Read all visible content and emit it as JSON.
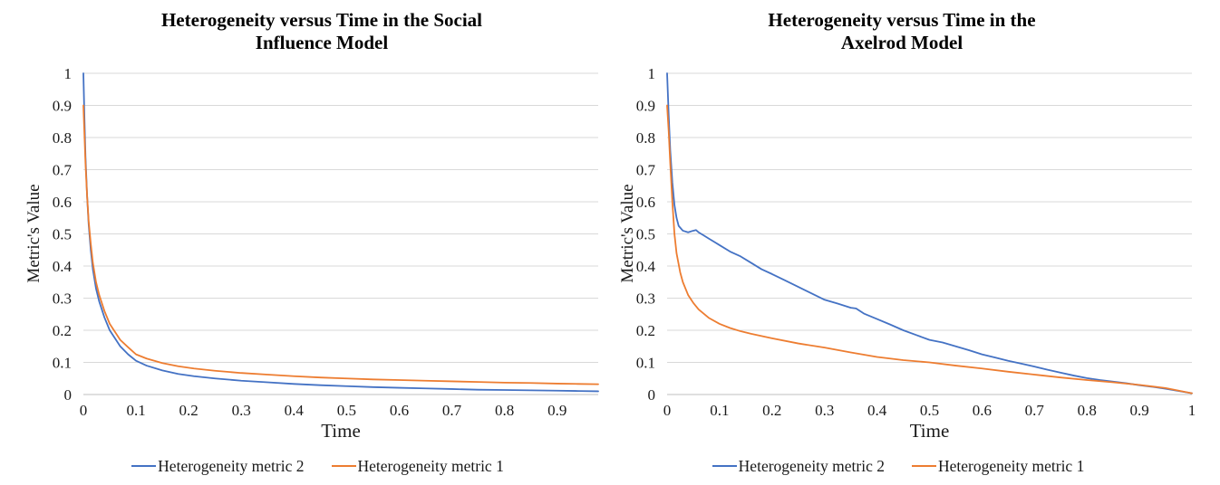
{
  "figure": {
    "background": "#ffffff",
    "text_color": "#000000",
    "grid_color": "#d9d9d9",
    "axis_line_color": "#bfbfbf"
  },
  "chart_data": [
    {
      "type": "line",
      "title": "Heterogeneity versus Time in the Social Influence Model",
      "title_lines": [
        "Heterogeneity versus Time in the Social",
        "Influence Model"
      ],
      "xlabel": "Time",
      "ylabel": "Metric's Value",
      "xlim": [
        0,
        0.978
      ],
      "ylim": [
        0,
        1
      ],
      "x_tick_labels": [
        "0",
        "0.1",
        "0.2",
        "0.3",
        "0.4",
        "0.5",
        "0.6",
        "0.7",
        "0.8",
        "0.9"
      ],
      "y_tick_labels": [
        "0",
        "0.1",
        "0.2",
        "0.3",
        "0.4",
        "0.5",
        "0.6",
        "0.7",
        "0.8",
        "0.9",
        "1"
      ],
      "grid": "horizontal",
      "legend_position": "bottom",
      "series": [
        {
          "name": "Heterogeneity metric 2",
          "color": "#4472C4",
          "x": [
            0,
            0.002,
            0.004,
            0.007,
            0.01,
            0.014,
            0.018,
            0.024,
            0.03,
            0.04,
            0.05,
            0.06,
            0.07,
            0.085,
            0.1,
            0.12,
            0.15,
            0.18,
            0.21,
            0.25,
            0.3,
            0.35,
            0.4,
            0.45,
            0.5,
            0.55,
            0.6,
            0.65,
            0.7,
            0.75,
            0.8,
            0.85,
            0.9,
            0.94,
            0.978
          ],
          "y": [
            1.0,
            0.86,
            0.74,
            0.62,
            0.53,
            0.45,
            0.39,
            0.33,
            0.29,
            0.24,
            0.2,
            0.175,
            0.15,
            0.125,
            0.105,
            0.09,
            0.075,
            0.064,
            0.057,
            0.05,
            0.043,
            0.038,
            0.033,
            0.029,
            0.026,
            0.023,
            0.021,
            0.019,
            0.017,
            0.015,
            0.014,
            0.013,
            0.012,
            0.011,
            0.01
          ]
        },
        {
          "name": "Heterogeneity metric 1",
          "color": "#ED7D31",
          "x": [
            0,
            0.002,
            0.004,
            0.007,
            0.01,
            0.014,
            0.018,
            0.024,
            0.03,
            0.04,
            0.05,
            0.06,
            0.07,
            0.085,
            0.1,
            0.12,
            0.15,
            0.18,
            0.21,
            0.25,
            0.3,
            0.35,
            0.4,
            0.45,
            0.5,
            0.55,
            0.6,
            0.65,
            0.7,
            0.75,
            0.8,
            0.85,
            0.9,
            0.94,
            0.978
          ],
          "y": [
            0.9,
            0.81,
            0.72,
            0.62,
            0.54,
            0.47,
            0.41,
            0.35,
            0.31,
            0.26,
            0.22,
            0.195,
            0.17,
            0.147,
            0.125,
            0.112,
            0.098,
            0.088,
            0.081,
            0.074,
            0.067,
            0.062,
            0.057,
            0.053,
            0.05,
            0.047,
            0.045,
            0.043,
            0.041,
            0.039,
            0.037,
            0.036,
            0.034,
            0.033,
            0.032
          ]
        }
      ]
    },
    {
      "type": "line",
      "title": "Heterogeneity versus Time in the Axelrod Model",
      "title_lines": [
        "Heterogeneity versus Time in the",
        "Axelrod Model"
      ],
      "xlabel": "Time",
      "ylabel": "Metric's Value",
      "xlim": [
        0,
        1
      ],
      "ylim": [
        0,
        1
      ],
      "x_tick_labels": [
        "0",
        "0.1",
        "0.2",
        "0.3",
        "0.4",
        "0.5",
        "0.6",
        "0.7",
        "0.8",
        "0.9",
        "1"
      ],
      "y_tick_labels": [
        "0",
        "0.1",
        "0.2",
        "0.3",
        "0.4",
        "0.5",
        "0.6",
        "0.7",
        "0.8",
        "0.9",
        "1"
      ],
      "grid": "horizontal",
      "legend_position": "bottom",
      "series": [
        {
          "name": "Heterogeneity metric 2",
          "color": "#4472C4",
          "x": [
            0,
            0.003,
            0.006,
            0.01,
            0.014,
            0.018,
            0.022,
            0.03,
            0.04,
            0.05,
            0.055,
            0.06,
            0.07,
            0.08,
            0.09,
            0.1,
            0.12,
            0.14,
            0.16,
            0.18,
            0.2,
            0.225,
            0.25,
            0.275,
            0.3,
            0.325,
            0.35,
            0.36,
            0.375,
            0.4,
            0.425,
            0.45,
            0.475,
            0.5,
            0.525,
            0.55,
            0.575,
            0.6,
            0.625,
            0.65,
            0.675,
            0.7,
            0.725,
            0.75,
            0.775,
            0.8,
            0.825,
            0.85,
            0.875,
            0.9,
            0.925,
            0.95,
            0.975,
            1.0
          ],
          "y": [
            1.0,
            0.87,
            0.76,
            0.66,
            0.59,
            0.55,
            0.525,
            0.51,
            0.505,
            0.51,
            0.512,
            0.505,
            0.495,
            0.485,
            0.475,
            0.465,
            0.445,
            0.43,
            0.41,
            0.39,
            0.375,
            0.355,
            0.335,
            0.315,
            0.295,
            0.283,
            0.27,
            0.268,
            0.252,
            0.235,
            0.218,
            0.2,
            0.185,
            0.17,
            0.162,
            0.15,
            0.138,
            0.125,
            0.115,
            0.105,
            0.096,
            0.087,
            0.077,
            0.068,
            0.059,
            0.051,
            0.045,
            0.04,
            0.035,
            0.029,
            0.024,
            0.018,
            0.011,
            0.004
          ]
        },
        {
          "name": "Heterogeneity metric 1",
          "color": "#ED7D31",
          "x": [
            0,
            0.003,
            0.006,
            0.01,
            0.014,
            0.018,
            0.025,
            0.03,
            0.04,
            0.05,
            0.06,
            0.08,
            0.1,
            0.12,
            0.14,
            0.16,
            0.18,
            0.2,
            0.25,
            0.3,
            0.35,
            0.4,
            0.45,
            0.5,
            0.55,
            0.6,
            0.65,
            0.7,
            0.75,
            0.8,
            0.85,
            0.9,
            0.95,
            1.0
          ],
          "y": [
            0.9,
            0.82,
            0.72,
            0.6,
            0.5,
            0.44,
            0.38,
            0.35,
            0.31,
            0.285,
            0.265,
            0.238,
            0.22,
            0.207,
            0.197,
            0.189,
            0.182,
            0.175,
            0.159,
            0.146,
            0.131,
            0.117,
            0.107,
            0.1,
            0.09,
            0.081,
            0.071,
            0.062,
            0.053,
            0.045,
            0.038,
            0.03,
            0.02,
            0.004
          ]
        }
      ]
    }
  ]
}
